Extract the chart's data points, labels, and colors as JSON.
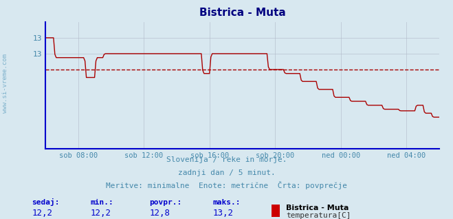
{
  "title": "Bistrica - Muta",
  "bg_color": "#d8e8f0",
  "plot_bg_color": "#d8e8f0",
  "line_color": "#aa0000",
  "avg_line_color": "#aa0000",
  "axis_color": "#0000cc",
  "grid_color": "#b0b8c8",
  "text_color": "#4488aa",
  "ylim": [
    11.8,
    13.4
  ],
  "yticks": [
    13.0,
    13.0
  ],
  "y_labels": [
    "13",
    "13"
  ],
  "xlabel_ticks": [
    "sob 08:00",
    "sob 12:00",
    "sob 16:00",
    "sob 20:00",
    "ned 00:00",
    "ned 04:00"
  ],
  "avg_value": 12.8,
  "min_value": 12.2,
  "max_value": 13.2,
  "sedaj_value": 12.2,
  "subtitle1": "Slovenija / reke in morje.",
  "subtitle2": "zadnji dan / 5 minut.",
  "subtitle3": "Meritve: minimalne  Enote: metrične  Črta: povprečje",
  "legend_station": "Bistrica - Muta",
  "legend_param": "temperatura[C]",
  "label_sedaj": "sedaj:",
  "label_min": "min.:",
  "label_povpr": "povpr.:",
  "label_maks": "maks.:"
}
